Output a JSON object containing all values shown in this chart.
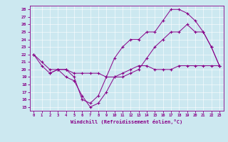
{
  "xlabel": "Windchill (Refroidissement éolien,°C)",
  "bg_color": "#cce8f0",
  "line_color": "#880088",
  "xlim": [
    -0.5,
    23.5
  ],
  "ylim": [
    14.5,
    28.5
  ],
  "yticks": [
    15,
    16,
    17,
    18,
    19,
    20,
    21,
    22,
    23,
    24,
    25,
    26,
    27,
    28
  ],
  "xticks": [
    0,
    1,
    2,
    3,
    4,
    5,
    6,
    7,
    8,
    9,
    10,
    11,
    12,
    13,
    14,
    15,
    16,
    17,
    18,
    19,
    20,
    21,
    22,
    23
  ],
  "line1_x": [
    0,
    1,
    2,
    3,
    4,
    5,
    6,
    7,
    8,
    9,
    10,
    11,
    12,
    13,
    14,
    15,
    16,
    17,
    18,
    19,
    20,
    21,
    22,
    23
  ],
  "line1_y": [
    22,
    21,
    20,
    20,
    19,
    18.5,
    16.5,
    15,
    15.5,
    17,
    19,
    19,
    19.5,
    20,
    21.5,
    23,
    24,
    25,
    25,
    26,
    25,
    25,
    23,
    20.5
  ],
  "line2_x": [
    0,
    1,
    2,
    3,
    4,
    5,
    6,
    7,
    8,
    9,
    10,
    11,
    12,
    13,
    14,
    15,
    16,
    17,
    18,
    19,
    20,
    21,
    22,
    23
  ],
  "line2_y": [
    22,
    20.5,
    19.5,
    20,
    20,
    19.5,
    19.5,
    19.5,
    19.5,
    19,
    19,
    19.5,
    20,
    20.5,
    20.5,
    20,
    20,
    20,
    20.5,
    20.5,
    20.5,
    20.5,
    20.5,
    20.5
  ],
  "line3_x": [
    2,
    3,
    4,
    5,
    6,
    7,
    8,
    9,
    10,
    11,
    12,
    13,
    14,
    15,
    16,
    17,
    18,
    19,
    20,
    21,
    22,
    23
  ],
  "line3_y": [
    19.5,
    20,
    20,
    19,
    16,
    15.5,
    16.5,
    19,
    21.5,
    23,
    24,
    24,
    25,
    25,
    26.5,
    28,
    28,
    27.5,
    26.5,
    25,
    23,
    20.5
  ]
}
